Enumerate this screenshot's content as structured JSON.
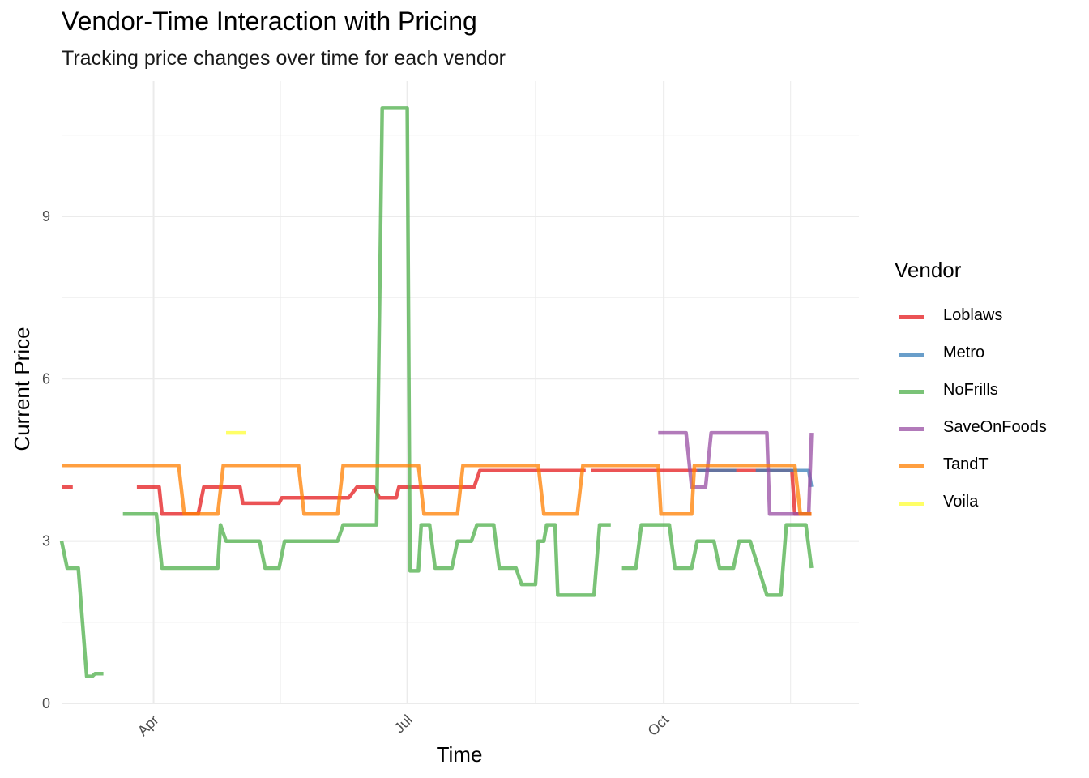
{
  "title": "Vendor-Time Interaction with Pricing",
  "subtitle": "Tracking price changes over time for each vendor",
  "legend": {
    "title": "Vendor"
  },
  "chart_data": {
    "type": "line",
    "title": "Vendor-Time Interaction with Pricing",
    "subtitle": "Tracking price changes over time for each vendor",
    "xlabel": "Time",
    "ylabel": "Current Price",
    "x_type": "date",
    "xlim": [
      "2024-02-28",
      "2024-12-10"
    ],
    "ylim": [
      0,
      11.5
    ],
    "x_ticks": [
      {
        "date": "2024-04-01",
        "label": "Apr"
      },
      {
        "date": "2024-07-01",
        "label": "Jul"
      },
      {
        "date": "2024-10-01",
        "label": "Oct"
      }
    ],
    "y_ticks": [
      0,
      3,
      6,
      9
    ],
    "grid": true,
    "legend_position": "right",
    "series": [
      {
        "name": "Loblaws",
        "color": "#E41A1C",
        "segments": [
          [
            [
              "2024-02-28",
              4.0
            ],
            [
              "2024-03-03",
              4.0
            ]
          ],
          [
            [
              "2024-03-26",
              4.0
            ],
            [
              "2024-04-03",
              4.0
            ],
            [
              "2024-04-04",
              3.5
            ],
            [
              "2024-04-17",
              3.5
            ],
            [
              "2024-04-19",
              4.0
            ],
            [
              "2024-05-02",
              4.0
            ],
            [
              "2024-05-03",
              3.7
            ],
            [
              "2024-05-16",
              3.7
            ],
            [
              "2024-05-17",
              3.8
            ],
            [
              "2024-06-10",
              3.8
            ],
            [
              "2024-06-13",
              4.0
            ],
            [
              "2024-06-19",
              4.0
            ],
            [
              "2024-06-21",
              3.8
            ],
            [
              "2024-06-27",
              3.8
            ],
            [
              "2024-06-28",
              4.0
            ],
            [
              "2024-07-25",
              4.0
            ],
            [
              "2024-07-27",
              4.3
            ],
            [
              "2024-09-03",
              4.3
            ]
          ],
          [
            [
              "2024-09-05",
              4.3
            ],
            [
              "2024-11-16",
              4.3
            ],
            [
              "2024-11-17",
              3.5
            ],
            [
              "2024-11-23",
              3.5
            ]
          ]
        ]
      },
      {
        "name": "Metro",
        "color": "#377EB8",
        "segments": [
          [
            [
              "2024-10-13",
              4.3
            ],
            [
              "2024-10-27",
              4.3
            ]
          ],
          [
            [
              "2024-11-03",
              4.3
            ],
            [
              "2024-11-22",
              4.3
            ],
            [
              "2024-11-23",
              4.0
            ]
          ]
        ]
      },
      {
        "name": "NoFrills",
        "color": "#4DAF4A",
        "segments": [
          [
            [
              "2024-02-28",
              3.0
            ],
            [
              "2024-03-01",
              2.5
            ],
            [
              "2024-03-05",
              2.5
            ],
            [
              "2024-03-08",
              0.5
            ],
            [
              "2024-03-10",
              0.5
            ],
            [
              "2024-03-11",
              0.55
            ],
            [
              "2024-03-14",
              0.55
            ]
          ],
          [
            [
              "2024-03-21",
              3.5
            ],
            [
              "2024-04-02",
              3.5
            ],
            [
              "2024-04-04",
              2.5
            ],
            [
              "2024-04-24",
              2.5
            ],
            [
              "2024-04-25",
              3.3
            ],
            [
              "2024-04-27",
              3.0
            ],
            [
              "2024-05-09",
              3.0
            ],
            [
              "2024-05-11",
              2.5
            ],
            [
              "2024-05-16",
              2.5
            ],
            [
              "2024-05-18",
              3.0
            ],
            [
              "2024-06-06",
              3.0
            ],
            [
              "2024-06-08",
              3.3
            ],
            [
              "2024-06-20",
              3.3
            ],
            [
              "2024-06-22",
              11.0
            ],
            [
              "2024-07-01",
              11.0
            ],
            [
              "2024-07-02",
              2.45
            ],
            [
              "2024-07-05",
              2.45
            ],
            [
              "2024-07-06",
              3.3
            ],
            [
              "2024-07-09",
              3.3
            ],
            [
              "2024-07-11",
              2.5
            ],
            [
              "2024-07-17",
              2.5
            ],
            [
              "2024-07-19",
              3.0
            ],
            [
              "2024-07-24",
              3.0
            ],
            [
              "2024-07-26",
              3.3
            ],
            [
              "2024-08-01",
              3.3
            ],
            [
              "2024-08-03",
              2.5
            ],
            [
              "2024-08-09",
              2.5
            ],
            [
              "2024-08-11",
              2.2
            ],
            [
              "2024-08-16",
              2.2
            ],
            [
              "2024-08-17",
              3.0
            ],
            [
              "2024-08-19",
              3.0
            ],
            [
              "2024-08-20",
              3.3
            ],
            [
              "2024-08-23",
              3.3
            ],
            [
              "2024-08-24",
              2.0
            ],
            [
              "2024-09-06",
              2.0
            ],
            [
              "2024-09-08",
              3.3
            ],
            [
              "2024-09-12",
              3.3
            ]
          ],
          [
            [
              "2024-09-16",
              2.5
            ],
            [
              "2024-09-21",
              2.5
            ],
            [
              "2024-09-23",
              3.3
            ],
            [
              "2024-10-03",
              3.3
            ],
            [
              "2024-10-05",
              2.5
            ],
            [
              "2024-10-11",
              2.5
            ],
            [
              "2024-10-13",
              3.0
            ],
            [
              "2024-10-19",
              3.0
            ],
            [
              "2024-10-21",
              2.5
            ],
            [
              "2024-10-26",
              2.5
            ],
            [
              "2024-10-28",
              3.0
            ],
            [
              "2024-11-01",
              3.0
            ],
            [
              "2024-11-07",
              2.0
            ],
            [
              "2024-11-12",
              2.0
            ],
            [
              "2024-11-14",
              3.3
            ],
            [
              "2024-11-21",
              3.3
            ],
            [
              "2024-11-23",
              2.5
            ]
          ]
        ]
      },
      {
        "name": "SaveOnFoods",
        "color": "#984EA3",
        "segments": [
          [
            [
              "2024-09-29",
              5.0
            ],
            [
              "2024-10-09",
              5.0
            ],
            [
              "2024-10-11",
              4.0
            ],
            [
              "2024-10-16",
              4.0
            ],
            [
              "2024-10-18",
              5.0
            ],
            [
              "2024-11-07",
              5.0
            ],
            [
              "2024-11-08",
              3.5
            ],
            [
              "2024-11-17",
              3.5
            ],
            [
              "2024-11-22",
              3.5
            ],
            [
              "2024-11-23",
              5.0
            ]
          ]
        ]
      },
      {
        "name": "TandT",
        "color": "#FF7F00",
        "segments": [
          [
            [
              "2024-02-28",
              4.4
            ],
            [
              "2024-04-10",
              4.4
            ],
            [
              "2024-04-12",
              3.5
            ],
            [
              "2024-04-24",
              3.5
            ],
            [
              "2024-04-26",
              4.4
            ],
            [
              "2024-05-23",
              4.4
            ],
            [
              "2024-05-25",
              3.5
            ],
            [
              "2024-06-06",
              3.5
            ],
            [
              "2024-06-08",
              4.4
            ],
            [
              "2024-07-05",
              4.4
            ],
            [
              "2024-07-07",
              3.5
            ],
            [
              "2024-07-19",
              3.5
            ],
            [
              "2024-07-21",
              4.4
            ],
            [
              "2024-08-17",
              4.4
            ],
            [
              "2024-08-19",
              3.5
            ],
            [
              "2024-08-31",
              3.5
            ],
            [
              "2024-09-02",
              4.4
            ],
            [
              "2024-09-29",
              4.4
            ],
            [
              "2024-09-30",
              3.5
            ],
            [
              "2024-10-11",
              3.5
            ],
            [
              "2024-10-12",
              4.4
            ],
            [
              "2024-11-17",
              4.4
            ],
            [
              "2024-11-19",
              3.5
            ],
            [
              "2024-11-23",
              3.5
            ]
          ]
        ]
      },
      {
        "name": "Voila",
        "color": "#FFFF33",
        "segments": [
          [
            [
              "2024-04-27",
              5.0
            ],
            [
              "2024-05-04",
              5.0
            ]
          ]
        ]
      }
    ]
  }
}
